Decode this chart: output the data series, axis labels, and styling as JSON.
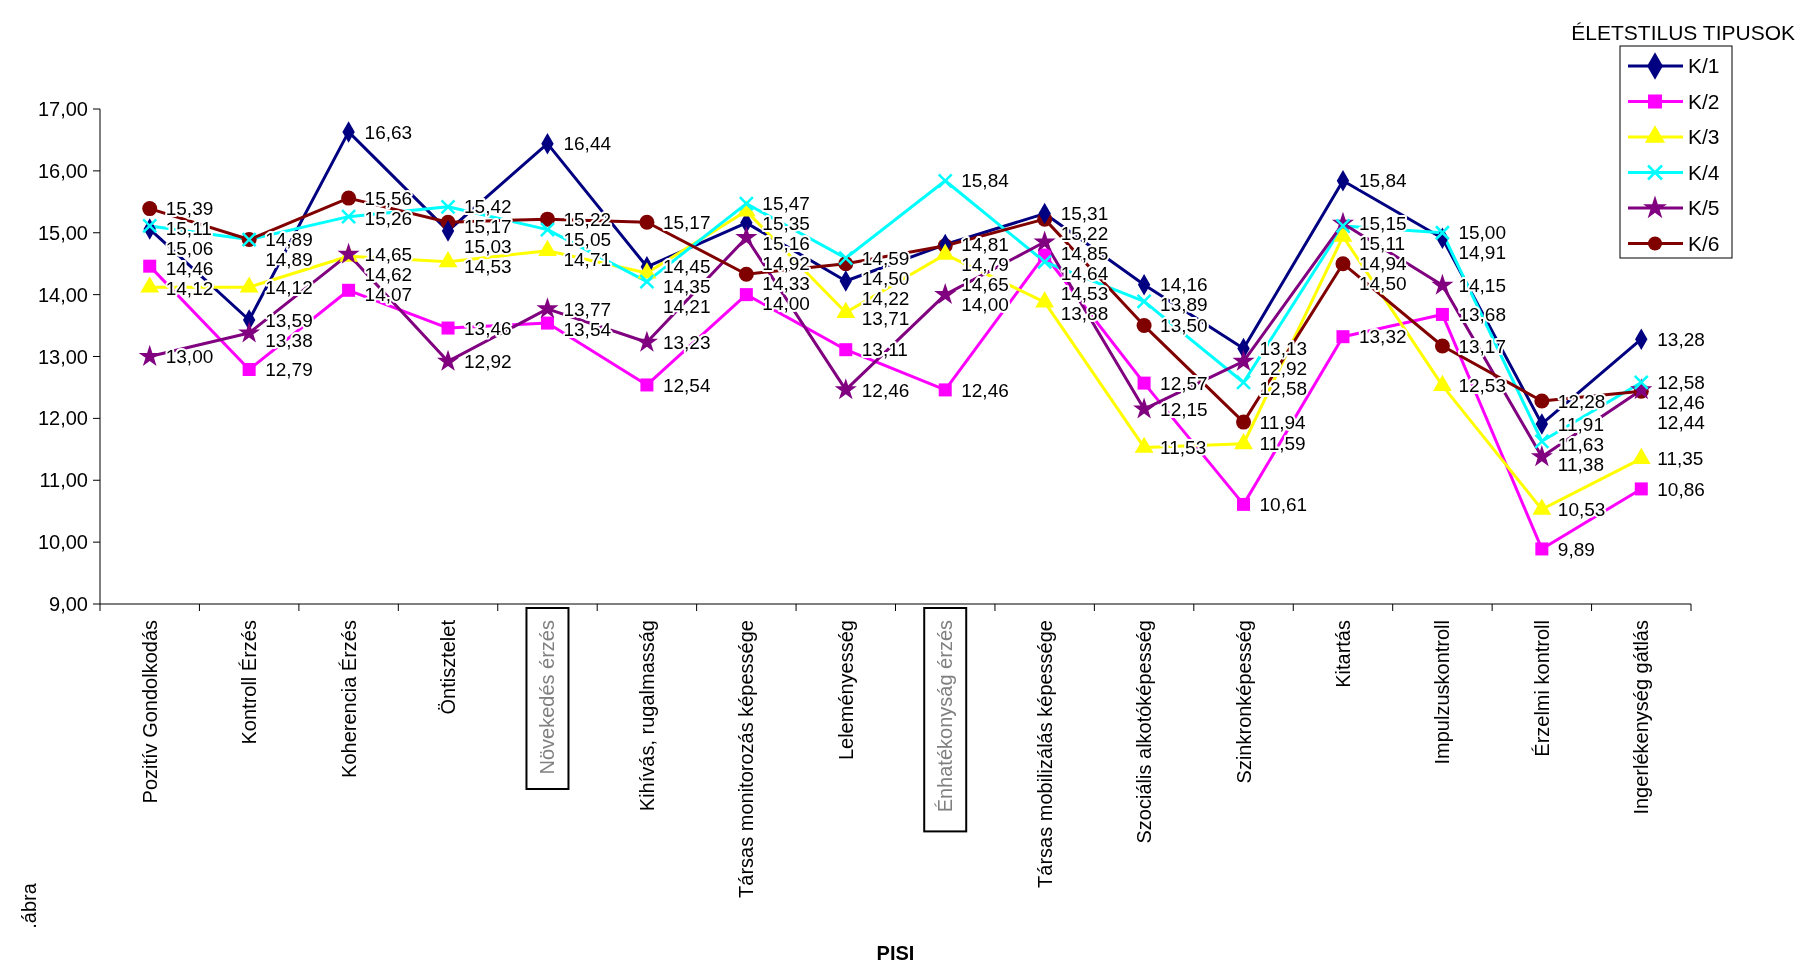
{
  "chart_data": {
    "type": "line",
    "xlabel": "PISI",
    "legend_title": "ÉLETSTILUS TIPUSOK",
    "annotations": [
      ".ábra"
    ],
    "categories": [
      "Pozitív Gondolkodás",
      "Kontroll Érzés",
      "Koherencia Érzés",
      "Öntisztelet",
      "Növekedés érzés",
      "Kihívás, rugalmasság",
      "Társas monitorozás képessége",
      "Leleményesség",
      "Énhatékonyság érzés",
      "Társas mobilizálás képessége",
      "Szociális alkotóképesség",
      "Szinkronképesség",
      "Kitartás",
      "Impulzuskontroll",
      "Érzelmi kontroll",
      "Ingerlékenység gátlás"
    ],
    "series": [
      {
        "name": "K/1",
        "color": "#000080",
        "marker": "diamond",
        "values": [
          15.06,
          13.59,
          16.63,
          15.03,
          16.44,
          14.45,
          15.16,
          14.22,
          14.81,
          15.31,
          14.16,
          13.13,
          15.84,
          14.91,
          11.91,
          13.28
        ],
        "value_labels": [
          "15,06",
          "13,59",
          "16,63",
          "15,03",
          "16,44",
          "14,45",
          "15,16",
          "14,22",
          "14,81",
          "15,31",
          "14,16",
          "13,13",
          "15,84",
          "14,91",
          "11,91",
          "13,28"
        ]
      },
      {
        "name": "K/2",
        "color": "#ff00ff",
        "marker": "square",
        "values": [
          14.46,
          12.79,
          14.07,
          13.46,
          13.54,
          12.54,
          14.0,
          13.11,
          12.46,
          14.64,
          12.57,
          10.61,
          13.32,
          13.68,
          9.89,
          10.86
        ],
        "value_labels": [
          "14,46",
          "12,79",
          "14,07",
          "13,46",
          "13,54",
          "12,54",
          "14,00",
          "13,11",
          "12,46",
          "14,64",
          "12,57",
          "10,61",
          "13,32",
          "13,68",
          "9,89",
          "10,86"
        ]
      },
      {
        "name": "K/3",
        "color": "#ffff00",
        "marker": "triangle",
        "values": [
          14.12,
          14.12,
          14.62,
          14.53,
          14.71,
          14.35,
          15.35,
          13.71,
          14.65,
          13.88,
          11.53,
          11.59,
          14.94,
          12.53,
          10.53,
          11.35
        ],
        "value_labels": [
          "14,12",
          "14,12",
          "14,62",
          "14,53",
          "14,71",
          "14,35",
          "15,35",
          "13,71",
          "14,65",
          "13,88",
          "11,53",
          "11,59",
          "14,94",
          "12,53",
          "10,53",
          "11,35"
        ]
      },
      {
        "name": "K/4",
        "color": "#00ffff",
        "marker": "cross",
        "values": [
          15.11,
          14.89,
          15.26,
          15.42,
          15.05,
          14.21,
          15.47,
          14.59,
          15.84,
          14.53,
          13.89,
          12.58,
          15.11,
          15.0,
          11.63,
          12.58
        ],
        "value_labels": [
          "15,11",
          "14,89",
          "15,26",
          "15,42",
          "15,05",
          "14,21",
          "15,47",
          "14,59",
          "15,84",
          "14,53",
          "13,89",
          "12,58",
          "15,11",
          "15,00",
          "11,63",
          "12,58"
        ]
      },
      {
        "name": "K/5",
        "color": "#800080",
        "marker": "star",
        "values": [
          13.0,
          13.38,
          14.65,
          12.92,
          13.77,
          13.23,
          14.92,
          12.46,
          14.0,
          14.85,
          12.15,
          12.92,
          15.15,
          14.15,
          11.38,
          12.46
        ],
        "value_labels": [
          "13,00",
          "13,38",
          "14,65",
          "12,92",
          "13,77",
          "13,23",
          "14,92",
          "12,46",
          "14,00",
          "14,85",
          "12,15",
          "12,92",
          "15,15",
          "14,15",
          "11,38",
          "12,46"
        ]
      },
      {
        "name": "K/6",
        "color": "#800000",
        "marker": "circle",
        "values": [
          15.39,
          14.89,
          15.56,
          15.17,
          15.22,
          15.17,
          14.33,
          14.5,
          14.79,
          15.22,
          13.5,
          11.94,
          14.5,
          13.17,
          12.28,
          12.44
        ],
        "value_labels": [
          "15,39",
          "14,89",
          "15,56",
          "15,17",
          "15,22",
          "15,17",
          "14,33",
          "14,50",
          "14,79",
          "15,22",
          "13,50",
          "11,94",
          "14,50",
          "13,17",
          "12,28",
          "12,44"
        ]
      }
    ],
    "ylim": [
      9,
      17
    ],
    "yticks": [
      {
        "value": 9,
        "label": "9,00"
      },
      {
        "value": 10,
        "label": "10,00"
      },
      {
        "value": 11,
        "label": "11,00"
      },
      {
        "value": 12,
        "label": "12,00"
      },
      {
        "value": 13,
        "label": "13,00"
      },
      {
        "value": 14,
        "label": "14,00"
      },
      {
        "value": 15,
        "label": "15,00"
      },
      {
        "value": 16,
        "label": "16,00"
      },
      {
        "value": 17,
        "label": "17,00"
      }
    ],
    "data_labels": true,
    "legend": "top right",
    "grid": false,
    "line_style": "solid"
  }
}
